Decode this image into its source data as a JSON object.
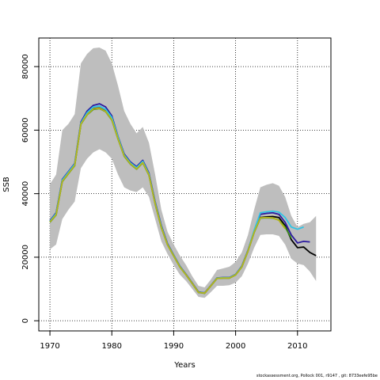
{
  "chart_data": {
    "type": "line",
    "title": "",
    "xlabel": "Years",
    "ylabel": "SSB",
    "xlim": [
      1968.2,
      2015.4
    ],
    "ylim": [
      -3200,
      89000
    ],
    "x_ticks": [
      1970,
      1980,
      1990,
      2000,
      2010
    ],
    "y_ticks": [
      0,
      20000,
      40000,
      60000,
      80000
    ],
    "grid": "dotted",
    "legend": "none",
    "band": {
      "color": "#bebebe",
      "upper": [
        [
          1970,
          43000
        ],
        [
          1971,
          46000
        ],
        [
          1972,
          60000
        ],
        [
          1973,
          62000
        ],
        [
          1974,
          65000
        ],
        [
          1975,
          81000
        ],
        [
          1976,
          84000
        ],
        [
          1977,
          85800
        ],
        [
          1978,
          86000
        ],
        [
          1979,
          85000
        ],
        [
          1980,
          81000
        ],
        [
          1981,
          74000
        ],
        [
          1982,
          66000
        ],
        [
          1983,
          62000
        ],
        [
          1984,
          59000
        ],
        [
          1985,
          61000
        ],
        [
          1986,
          56000
        ],
        [
          1987,
          46000
        ],
        [
          1988,
          35000
        ],
        [
          1989,
          28000
        ],
        [
          1990,
          24000
        ],
        [
          1991,
          20500
        ],
        [
          1992,
          17500
        ],
        [
          1993,
          14000
        ],
        [
          1994,
          11000
        ],
        [
          1995,
          10500
        ],
        [
          1996,
          13000
        ],
        [
          1997,
          16000
        ],
        [
          1998,
          16500
        ],
        [
          1999,
          17000
        ],
        [
          2000,
          18500
        ],
        [
          2001,
          21500
        ],
        [
          2002,
          27000
        ],
        [
          2003,
          35000
        ],
        [
          2004,
          42000
        ],
        [
          2005,
          42800
        ],
        [
          2006,
          43300
        ],
        [
          2007,
          42500
        ],
        [
          2008,
          39000
        ],
        [
          2009,
          33000
        ],
        [
          2010,
          29500
        ],
        [
          2011,
          30500
        ],
        [
          2012,
          31000
        ],
        [
          2013,
          33000
        ]
      ],
      "lower": [
        [
          1970,
          22500
        ],
        [
          1971,
          24000
        ],
        [
          1972,
          32000
        ],
        [
          1973,
          35000
        ],
        [
          1974,
          37500
        ],
        [
          1975,
          48000
        ],
        [
          1976,
          51000
        ],
        [
          1977,
          53000
        ],
        [
          1978,
          54000
        ],
        [
          1979,
          53000
        ],
        [
          1980,
          51000
        ],
        [
          1981,
          46000
        ],
        [
          1982,
          42000
        ],
        [
          1983,
          41000
        ],
        [
          1984,
          40500
        ],
        [
          1985,
          42000
        ],
        [
          1986,
          39000
        ],
        [
          1987,
          32000
        ],
        [
          1988,
          25000
        ],
        [
          1989,
          21000
        ],
        [
          1990,
          17500
        ],
        [
          1991,
          14500
        ],
        [
          1992,
          12500
        ],
        [
          1993,
          10000
        ],
        [
          1994,
          7500
        ],
        [
          1995,
          7200
        ],
        [
          1996,
          9000
        ],
        [
          1997,
          11000
        ],
        [
          1998,
          11000
        ],
        [
          1999,
          11200
        ],
        [
          2000,
          12000
        ],
        [
          2001,
          14000
        ],
        [
          2002,
          18000
        ],
        [
          2003,
          23000
        ],
        [
          2004,
          27000
        ],
        [
          2005,
          27200
        ],
        [
          2006,
          27200
        ],
        [
          2007,
          26700
        ],
        [
          2008,
          24000
        ],
        [
          2009,
          19500
        ],
        [
          2010,
          18000
        ],
        [
          2011,
          17500
        ],
        [
          2012,
          15500
        ],
        [
          2013,
          12500
        ]
      ]
    },
    "series": [
      {
        "color": "#000000",
        "values": [
          [
            1970,
            31200
          ],
          [
            1971,
            33500
          ],
          [
            1972,
            44000
          ],
          [
            1973,
            46500
          ],
          [
            1974,
            49000
          ],
          [
            1975,
            62000
          ],
          [
            1976,
            65000
          ],
          [
            1977,
            66800
          ],
          [
            1978,
            67000
          ],
          [
            1979,
            66000
          ],
          [
            1980,
            63500
          ],
          [
            1981,
            57500
          ],
          [
            1982,
            52000
          ],
          [
            1983,
            49500
          ],
          [
            1984,
            48000
          ],
          [
            1985,
            50000
          ],
          [
            1986,
            46000
          ],
          [
            1987,
            37000
          ],
          [
            1988,
            29500
          ],
          [
            1989,
            24000
          ],
          [
            1990,
            20500
          ],
          [
            1991,
            17000
          ],
          [
            1992,
            14500
          ],
          [
            1993,
            11800
          ],
          [
            1994,
            9000
          ],
          [
            1995,
            8700
          ],
          [
            1996,
            11000
          ],
          [
            1997,
            13400
          ],
          [
            1998,
            13500
          ],
          [
            1999,
            13500
          ],
          [
            2000,
            14500
          ],
          [
            2001,
            17000
          ],
          [
            2002,
            22000
          ],
          [
            2003,
            28000
          ],
          [
            2004,
            32500
          ],
          [
            2005,
            32700
          ],
          [
            2006,
            32800
          ],
          [
            2007,
            32500
          ],
          [
            2008,
            30000
          ],
          [
            2009,
            25500
          ],
          [
            2010,
            23000
          ],
          [
            2011,
            23200
          ],
          [
            2012,
            21500
          ],
          [
            2013,
            20500
          ]
        ]
      },
      {
        "color": "#2b1aa0",
        "values": [
          [
            1970,
            31500
          ],
          [
            1971,
            34000
          ],
          [
            1972,
            44500
          ],
          [
            1973,
            47000
          ],
          [
            1974,
            49500
          ],
          [
            1975,
            62500
          ],
          [
            1976,
            66000
          ],
          [
            1977,
            67800
          ],
          [
            1978,
            68300
          ],
          [
            1979,
            67300
          ],
          [
            1980,
            64500
          ],
          [
            1981,
            58000
          ],
          [
            1982,
            52500
          ],
          [
            1983,
            50000
          ],
          [
            1984,
            48500
          ],
          [
            1985,
            50500
          ],
          [
            1986,
            46500
          ],
          [
            1987,
            37500
          ],
          [
            1988,
            30000
          ],
          [
            1989,
            24300
          ],
          [
            1990,
            20700
          ],
          [
            1991,
            17200
          ],
          [
            1992,
            14600
          ],
          [
            1993,
            11900
          ],
          [
            1994,
            9100
          ],
          [
            1995,
            8800
          ],
          [
            1996,
            11100
          ],
          [
            1997,
            13500
          ],
          [
            1998,
            13600
          ],
          [
            1999,
            13600
          ],
          [
            2000,
            14600
          ],
          [
            2001,
            17200
          ],
          [
            2002,
            22200
          ],
          [
            2003,
            28300
          ],
          [
            2004,
            33500
          ],
          [
            2005,
            33800
          ],
          [
            2006,
            34000
          ],
          [
            2007,
            33500
          ],
          [
            2008,
            31000
          ],
          [
            2009,
            27000
          ],
          [
            2010,
            24500
          ],
          [
            2011,
            25000
          ],
          [
            2012,
            24800
          ]
        ]
      },
      {
        "color": "#2ec4e6",
        "values": [
          [
            1970,
            31300
          ],
          [
            1971,
            33800
          ],
          [
            1972,
            44300
          ],
          [
            1973,
            46800
          ],
          [
            1974,
            49300
          ],
          [
            1975,
            62200
          ],
          [
            1976,
            65500
          ],
          [
            1977,
            67300
          ],
          [
            1978,
            67600
          ],
          [
            1979,
            66600
          ],
          [
            1980,
            64000
          ],
          [
            1981,
            57800
          ],
          [
            1982,
            52200
          ],
          [
            1983,
            49700
          ],
          [
            1984,
            48200
          ],
          [
            1985,
            50200
          ],
          [
            1986,
            46200
          ],
          [
            1987,
            37200
          ],
          [
            1988,
            29700
          ],
          [
            1989,
            24100
          ],
          [
            1990,
            20600
          ],
          [
            1991,
            17100
          ],
          [
            1992,
            14500
          ],
          [
            1993,
            11800
          ],
          [
            1994,
            9000
          ],
          [
            1995,
            8750
          ],
          [
            1996,
            11050
          ],
          [
            1997,
            13450
          ],
          [
            1998,
            13550
          ],
          [
            1999,
            13550
          ],
          [
            2000,
            14550
          ],
          [
            2001,
            17100
          ],
          [
            2002,
            22100
          ],
          [
            2003,
            28500
          ],
          [
            2004,
            34000
          ],
          [
            2005,
            34300
          ],
          [
            2006,
            34500
          ],
          [
            2007,
            34200
          ],
          [
            2008,
            32500
          ],
          [
            2009,
            29500
          ],
          [
            2010,
            28800
          ],
          [
            2011,
            29500
          ]
        ]
      },
      {
        "color": "#3a8a1c",
        "values": [
          [
            1970,
            31000
          ],
          [
            1971,
            33300
          ],
          [
            1972,
            43800
          ],
          [
            1973,
            46300
          ],
          [
            1974,
            48800
          ],
          [
            1975,
            61800
          ],
          [
            1976,
            64800
          ],
          [
            1977,
            66500
          ],
          [
            1978,
            66800
          ],
          [
            1979,
            65800
          ],
          [
            1980,
            63200
          ],
          [
            1981,
            57200
          ],
          [
            1982,
            51800
          ],
          [
            1983,
            49300
          ],
          [
            1984,
            47700
          ],
          [
            1985,
            49700
          ],
          [
            1986,
            45800
          ],
          [
            1987,
            36800
          ],
          [
            1988,
            29300
          ],
          [
            1989,
            23900
          ],
          [
            1990,
            20400
          ],
          [
            1991,
            16900
          ],
          [
            1992,
            14400
          ],
          [
            1993,
            11700
          ],
          [
            1994,
            8900
          ],
          [
            1995,
            8650
          ],
          [
            1996,
            10950
          ],
          [
            1997,
            13300
          ],
          [
            1998,
            13400
          ],
          [
            1999,
            13400
          ],
          [
            2000,
            14400
          ],
          [
            2001,
            16900
          ],
          [
            2002,
            21900
          ],
          [
            2003,
            27800
          ],
          [
            2004,
            32300
          ],
          [
            2005,
            32400
          ],
          [
            2006,
            32300
          ],
          [
            2007,
            31700
          ],
          [
            2008,
            29500
          ],
          [
            2009,
            26000
          ]
        ]
      },
      {
        "color": "#b5b51c",
        "values": [
          [
            1970,
            31100
          ],
          [
            1971,
            33400
          ],
          [
            1972,
            43900
          ],
          [
            1973,
            46400
          ],
          [
            1974,
            48900
          ],
          [
            1975,
            61900
          ],
          [
            1976,
            64900
          ],
          [
            1977,
            66700
          ],
          [
            1978,
            66900
          ],
          [
            1979,
            65900
          ],
          [
            1980,
            63300
          ],
          [
            1981,
            57300
          ],
          [
            1982,
            51900
          ],
          [
            1983,
            49400
          ],
          [
            1984,
            47800
          ],
          [
            1985,
            49800
          ],
          [
            1986,
            45900
          ],
          [
            1987,
            36900
          ],
          [
            1988,
            29400
          ],
          [
            1989,
            23950
          ],
          [
            1990,
            20450
          ],
          [
            1991,
            16950
          ],
          [
            1992,
            14450
          ],
          [
            1993,
            11750
          ],
          [
            1994,
            8950
          ],
          [
            1995,
            8700
          ],
          [
            1996,
            11000
          ],
          [
            1997,
            13350
          ],
          [
            1998,
            13450
          ],
          [
            1999,
            13450
          ],
          [
            2000,
            14450
          ],
          [
            2001,
            16950
          ],
          [
            2002,
            21950
          ],
          [
            2003,
            27900
          ],
          [
            2004,
            32400
          ],
          [
            2005,
            32500
          ],
          [
            2006,
            32400
          ],
          [
            2007,
            31600
          ],
          [
            2008,
            29000
          ]
        ]
      }
    ],
    "footnote": "stockassessment.org,  Pollock  001,  r9147 ,  git:  8733eefe95be"
  }
}
